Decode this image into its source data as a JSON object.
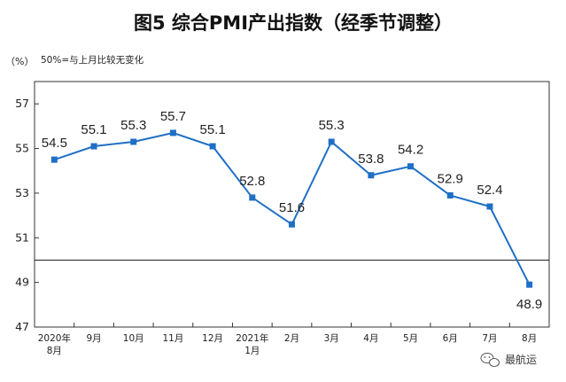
{
  "chart_data": {
    "type": "line",
    "title": "图5 综合PMI产出指数（经季节调整）",
    "unit_label": "（%）",
    "note": "50%=与上月比较无变化",
    "categories": [
      [
        "2020年",
        "8月"
      ],
      [
        "9月"
      ],
      [
        "10月"
      ],
      [
        "11月"
      ],
      [
        "12月"
      ],
      [
        "2021年",
        "1月"
      ],
      [
        "2月"
      ],
      [
        "3月"
      ],
      [
        "4月"
      ],
      [
        "5月"
      ],
      [
        "6月"
      ],
      [
        "7月"
      ],
      [
        "8月"
      ]
    ],
    "series": [
      {
        "values": [
          54.5,
          55.1,
          55.3,
          55.7,
          55.1,
          52.8,
          51.6,
          55.3,
          53.8,
          54.2,
          52.9,
          52.4,
          48.9
        ]
      }
    ],
    "data_labels": [
      "54.5",
      "55.1",
      "55.3",
      "55.7",
      "55.1",
      "52.8",
      "51.6",
      "55.3",
      "53.8",
      "54.2",
      "52.9",
      "52.4",
      "48.9"
    ],
    "yticks": [
      47,
      49,
      51,
      53,
      55,
      57
    ],
    "ylim": [
      47,
      58
    ],
    "reference_line": 50,
    "grid": false,
    "line_color": "#1f6fc5"
  },
  "watermark": {
    "icon": "wechat-icon",
    "text": "最航运"
  }
}
